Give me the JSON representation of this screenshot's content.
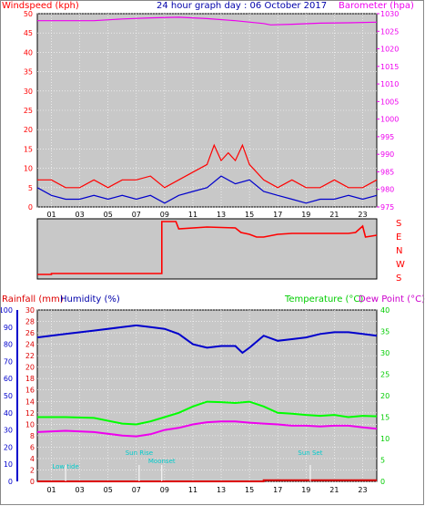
{
  "header": {
    "title": "24 hour graph day : 06 October 2017",
    "left_label": "Windspeed (kph)",
    "right_label": "Barometer (hpa)"
  },
  "colors": {
    "wind": "#ff0000",
    "gust": "#cc0000",
    "wind_avg": "#0000cc",
    "barometer": "#ee00ee",
    "direction": "#ff0000",
    "humidity": "#0000cc",
    "temperature": "#00ff00",
    "dewpoint": "#ee00ee",
    "rainfall": "#dd0000",
    "events": "#00cccc",
    "plot_bg": "#c8c8c8"
  },
  "hour_ticks": [
    "01",
    "03",
    "05",
    "07",
    "09",
    "11",
    "13",
    "15",
    "17",
    "19",
    "21",
    "23"
  ],
  "chart_data": [
    {
      "type": "line",
      "id": "wind-baro",
      "title": "24 hour graph day : 06 October 2017",
      "x": {
        "min": 0,
        "max": 24
      },
      "y_left": {
        "label": "Windspeed (kph)",
        "min": 0,
        "max": 50,
        "ticks": [
          0,
          5,
          10,
          15,
          20,
          25,
          30,
          35,
          40,
          45,
          50
        ]
      },
      "y_right": {
        "label": "Barometer (hpa)",
        "min": 975,
        "max": 1030,
        "ticks": [
          975,
          980,
          985,
          990,
          995,
          1000,
          1005,
          1010,
          1015,
          1020,
          1025,
          1030
        ]
      },
      "grid": true,
      "series": [
        {
          "name": "Barometer",
          "axis": "right",
          "x": [
            0,
            2,
            4,
            6,
            8,
            10,
            12,
            14,
            16,
            16.5,
            18,
            20,
            22,
            24
          ],
          "y": [
            1028,
            1028,
            1028,
            1028.5,
            1028.8,
            1029,
            1028.6,
            1028,
            1027.2,
            1026.8,
            1027,
            1027.3,
            1027.4,
            1027.6
          ]
        },
        {
          "name": "Gust",
          "axis": "left",
          "x": [
            0,
            1,
            2,
            3,
            4,
            5,
            6,
            7,
            8,
            9,
            10,
            11,
            12,
            12.5,
            13,
            13.5,
            14,
            14.5,
            15,
            16,
            17,
            18,
            19,
            20,
            21,
            22,
            23,
            24
          ],
          "y": [
            7,
            7,
            5,
            5,
            7,
            5,
            7,
            7,
            8,
            5,
            7,
            9,
            11,
            16,
            12,
            14,
            12,
            16,
            11,
            7,
            5,
            7,
            5,
            5,
            7,
            5,
            5,
            7
          ]
        },
        {
          "name": "Wind",
          "axis": "left",
          "x": [
            0,
            1,
            2,
            3,
            4,
            5,
            6,
            7,
            8,
            9,
            10,
            11,
            12,
            13,
            14,
            15,
            16,
            17,
            18,
            19,
            20,
            21,
            22,
            23,
            24
          ],
          "y": [
            5,
            3,
            2,
            2,
            3,
            2,
            3,
            2,
            3,
            1,
            3,
            4,
            5,
            8,
            6,
            7,
            4,
            3,
            2,
            1,
            2,
            2,
            3,
            2,
            3
          ]
        }
      ]
    },
    {
      "type": "line",
      "id": "wind-direction",
      "x": {
        "min": 0,
        "max": 24
      },
      "y_right": {
        "ticks": [
          "S",
          "E",
          "N",
          "W",
          "S"
        ]
      },
      "series": [
        {
          "name": "Direction",
          "x": [
            0,
            1,
            1,
            8.8,
            8.8,
            9.8,
            10,
            12,
            14,
            14.4,
            15,
            15.5,
            16,
            17,
            18,
            19,
            20,
            21,
            22,
            22.5,
            23,
            23.2,
            24
          ],
          "y": [
            5,
            5,
            6,
            6,
            63,
            63,
            55,
            57,
            56,
            51,
            49,
            46,
            46,
            49,
            50,
            50,
            50,
            50,
            50,
            51,
            58,
            46,
            48
          ]
        }
      ]
    },
    {
      "type": "line",
      "id": "temp-hum-rain",
      "x": {
        "min": 0,
        "max": 24
      },
      "y_left_rain": {
        "label": "Rainfall (mm)",
        "min": 0,
        "max": 30,
        "ticks": [
          0,
          2,
          4,
          6,
          8,
          10,
          12,
          14,
          16,
          18,
          20,
          22,
          24,
          26,
          28,
          30
        ]
      },
      "y_left_hum": {
        "label": "Humidity (%)",
        "min": 0,
        "max": 100,
        "ticks": [
          0,
          10,
          20,
          30,
          40,
          50,
          60,
          70,
          80,
          90,
          100
        ]
      },
      "y_right": {
        "label": "Temperature (°C)",
        "min": 0,
        "max": 40,
        "ticks": [
          0,
          5,
          10,
          15,
          20,
          25,
          30,
          35,
          40
        ]
      },
      "right_extra_label": "Dew Point (°C)",
      "grid": true,
      "series": [
        {
          "name": "Humidity",
          "axis": "hum",
          "x": [
            0,
            2,
            4,
            6,
            7,
            8,
            9,
            10,
            11,
            12,
            13,
            14,
            14.5,
            15,
            16,
            17,
            18,
            19,
            20,
            21,
            22,
            23,
            24
          ],
          "y": [
            84,
            86,
            88,
            90,
            91,
            90,
            89,
            86,
            80,
            78,
            79,
            79,
            75,
            78,
            85,
            82,
            83,
            84,
            86,
            87,
            87,
            86,
            85
          ]
        },
        {
          "name": "Temperature",
          "axis": "temp",
          "x": [
            0,
            2,
            4,
            6,
            7,
            8,
            9,
            10,
            11,
            12,
            13,
            14,
            15,
            16,
            17,
            18,
            19,
            20,
            21,
            22,
            23,
            24
          ],
          "y": [
            15,
            15,
            14.8,
            13.5,
            13.3,
            14,
            15,
            16,
            17.5,
            18.6,
            18.5,
            18.3,
            18.6,
            17.5,
            16,
            15.8,
            15.5,
            15.3,
            15.5,
            15,
            15.3,
            15.2
          ]
        },
        {
          "name": "Dew Point",
          "axis": "temp",
          "x": [
            0,
            2,
            4,
            6,
            7,
            8,
            9,
            10,
            11,
            12,
            13,
            14,
            15,
            16,
            17,
            18,
            19,
            20,
            21,
            22,
            23,
            24
          ],
          "y": [
            11.5,
            11.8,
            11.5,
            10.7,
            10.5,
            11,
            12,
            12.5,
            13.3,
            13.8,
            14,
            14,
            13.7,
            13.5,
            13.3,
            13,
            13,
            12.8,
            13,
            13,
            12.6,
            12.3
          ]
        },
        {
          "name": "Rainfall",
          "axis": "rain",
          "x": [
            0,
            16,
            16,
            24
          ],
          "y": [
            0,
            0,
            0.2,
            0.2
          ]
        }
      ],
      "events": [
        {
          "label": "Low tide",
          "x": 2
        },
        {
          "label": "Sun Rise",
          "x": 7.2
        },
        {
          "label": "Moonset",
          "x": 8.8
        },
        {
          "label": "Sun Set",
          "x": 19.3
        }
      ]
    }
  ],
  "panel3": {
    "rain_label": "Rainfall (mm)",
    "hum_label": "Humidity (%)",
    "temp_label": "Temperature (°C)",
    "dew_label": "Dew Point (°C)"
  },
  "direction_labels": [
    "S",
    "E",
    "N",
    "W",
    "S"
  ]
}
